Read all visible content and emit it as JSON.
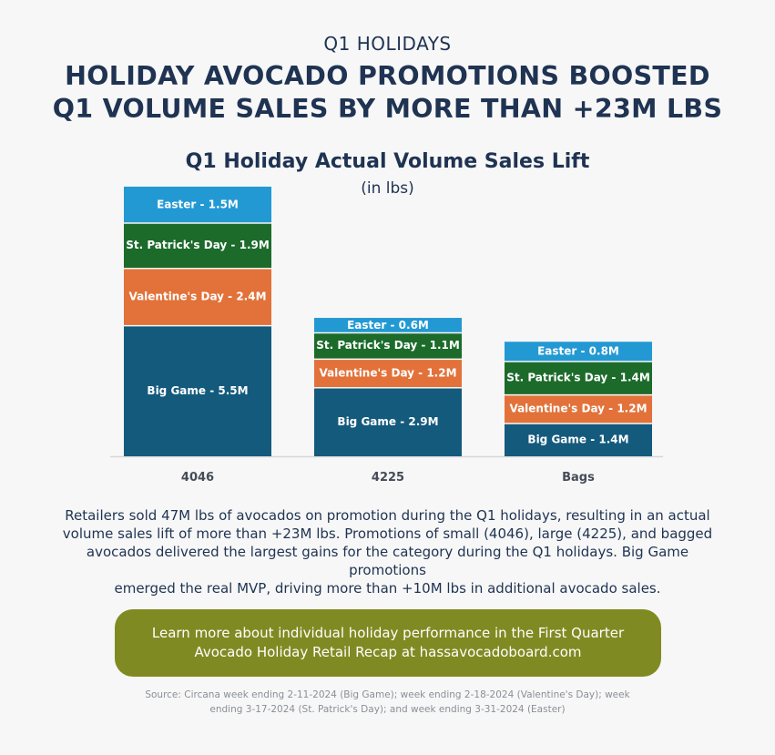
{
  "header": {
    "eyebrow": "Q1 HOLIDAYS",
    "headline_line1": "HOLIDAY AVOCADO PROMOTIONS BOOSTED",
    "headline_line2": "Q1 VOLUME SALES BY MORE THAN +23M LBS"
  },
  "chart_data": {
    "type": "bar",
    "stacked": true,
    "title": "Q1 Holiday Actual Volume Sales Lift",
    "subtitle": "(in lbs)",
    "categories": [
      "4046",
      "4225",
      "Bags"
    ],
    "series": [
      {
        "name": "Big Game",
        "color": "#145a7d",
        "values": [
          5.5,
          2.9,
          1.4
        ],
        "labels": [
          "Big Game - 5.5M",
          "Big Game - 2.9M",
          "Big Game - 1.4M"
        ]
      },
      {
        "name": "Valentine's Day",
        "color": "#e2723a",
        "values": [
          2.4,
          1.2,
          1.2
        ],
        "labels": [
          "Valentine's Day - 2.4M",
          "Valentine's Day - 1.2M",
          "Valentine's Day - 1.2M"
        ]
      },
      {
        "name": "St. Patrick's Day",
        "color": "#1c6b2b",
        "values": [
          1.9,
          1.1,
          1.4
        ],
        "labels": [
          "St. Patrick's Day - 1.9M",
          "St. Patrick's Day - 1.1M",
          "St. Patrick's Day - 1.4M"
        ]
      },
      {
        "name": "Easter",
        "color": "#2399d3",
        "values": [
          1.5,
          0.6,
          0.8
        ],
        "labels": [
          "Easter - 1.5M",
          "Easter - 0.6M",
          "Easter - 0.8M"
        ]
      }
    ],
    "unit": "M lbs",
    "legend": "none",
    "grid": false
  },
  "body": {
    "line1": "Retailers sold 47M lbs of avocados on promotion during the Q1 holidays, resulting in an actual",
    "line2": "volume sales lift of more than +23M lbs. Promotions of small (4046), large (4225), and bagged",
    "line3": "avocados delivered the largest gains for the category during the Q1 holidays. Big Game promotions",
    "line4": "emerged the real MVP, driving more than +10M lbs in additional avocado sales."
  },
  "cta": {
    "line1": "Learn more about individual holiday performance in the First Quarter",
    "line2": "Avocado Holiday Retail Recap at hassavocadoboard.com",
    "color": "#808a22"
  },
  "source": {
    "line1": "Source: Circana week ending 2-11-2024 (Big Game); week ending 2-18-2024 (Valentine's Day); week",
    "line2": "ending 3-17-2024 (St. Patrick's Day); and week ending 3-31-2024 (Easter)"
  }
}
